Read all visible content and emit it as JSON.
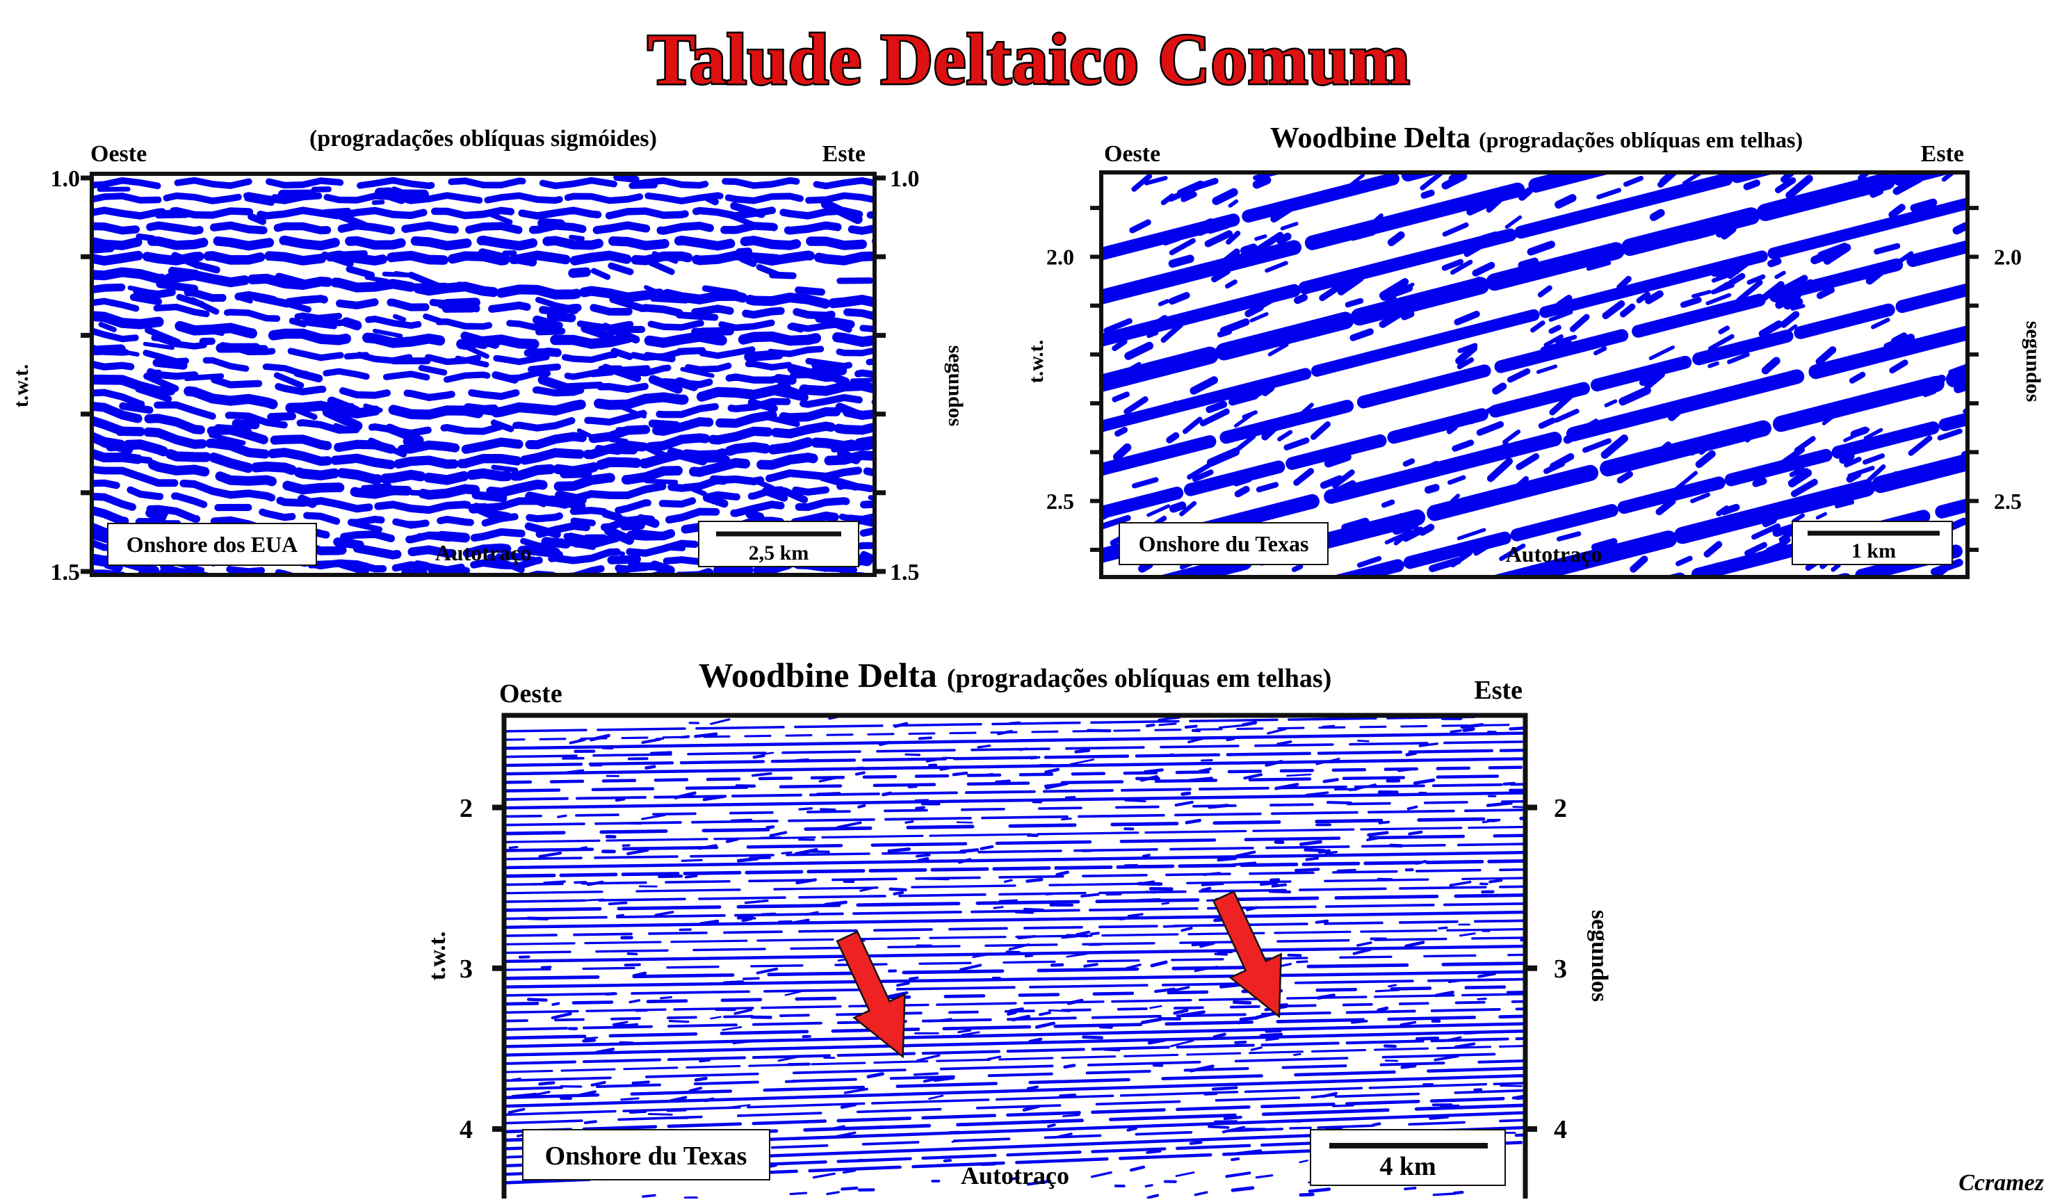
{
  "title": "Talude Deltaico Comum",
  "credit": "Ccramez",
  "colors": {
    "reflector": "#0000ee",
    "title_fill": "#dd1111",
    "arrow": "#ee2222",
    "frame": "#111111"
  },
  "panels": [
    {
      "heading_bold": "",
      "heading_note": "(progradações oblíquas sigmóides)",
      "left_label": "Oeste",
      "right_label": "Este",
      "y_label_left": "t.w.t.",
      "y_label_right": "segundos",
      "location_label": "Onshore dos EUA",
      "process_label": "Autotraço",
      "scale_label": "2,5 km",
      "y_range": [
        1.0,
        1.5
      ],
      "ticks": [
        1.0,
        1.1,
        1.2,
        1.3,
        1.4,
        1.5
      ],
      "tick_labels": [
        "1.0",
        "1.5"
      ],
      "right_tick_labels": [
        "1.0",
        "1.5"
      ],
      "pattern": "sigmoid",
      "arrows": []
    },
    {
      "heading_bold": "Woodbine Delta",
      "heading_note": "(progradações oblíquas em telhas)",
      "left_label": "Oeste",
      "right_label": "Este",
      "y_label_left": "t.w.t.",
      "y_label_right": "segundos",
      "location_label": "Onshore du Texas",
      "process_label": "Autotraço",
      "scale_label": "1 km",
      "y_range": [
        1.83,
        2.65
      ],
      "ticks": [
        1.9,
        2.0,
        2.1,
        2.2,
        2.3,
        2.4,
        2.5,
        2.6
      ],
      "tick_labels": [
        "2.0",
        "2.5"
      ],
      "right_tick_labels": [
        "2.0",
        "2.5"
      ],
      "pattern": "shingled",
      "arrows": []
    },
    {
      "heading_bold": "Woodbine Delta",
      "heading_note": "(progradações oblíquas em telhas)",
      "left_label": "Oeste",
      "right_label": "Este",
      "y_label_left": "t.w.t.",
      "y_label_right": "segundos",
      "location_label": "Onshore du Texas",
      "process_label": "Autotraço",
      "scale_label": "4 km",
      "y_range": [
        1.44,
        4.45
      ],
      "ticks": [
        2,
        3,
        4
      ],
      "tick_labels": [
        "2",
        "3",
        "4"
      ],
      "right_tick_labels": [
        "2",
        "3",
        "4"
      ],
      "pattern": "parallel",
      "arrows": [
        {
          "x": 0.39,
          "y": 3.55
        },
        {
          "x": 0.76,
          "y": 3.3
        }
      ]
    }
  ]
}
